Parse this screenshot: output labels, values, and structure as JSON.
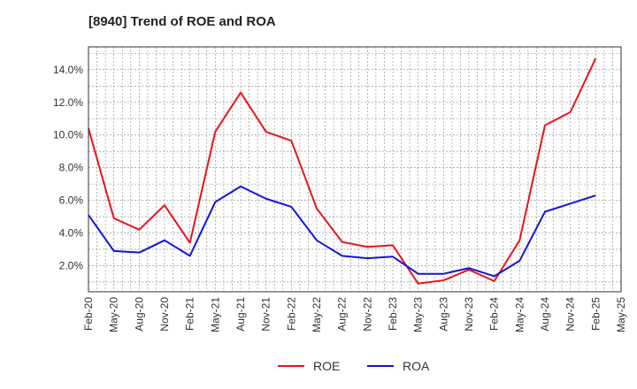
{
  "chart_data": {
    "type": "line",
    "title": "[8940]  Trend of ROE and ROA",
    "xlabel": "",
    "ylabel": "",
    "ylim": [
      0.4,
      15.4
    ],
    "y_ticks": [
      "2.0%",
      "4.0%",
      "6.0%",
      "8.0%",
      "10.0%",
      "12.0%",
      "14.0%"
    ],
    "y_tick_values": [
      2,
      4,
      6,
      8,
      10,
      12,
      14
    ],
    "x_ticks": [
      "Feb-20",
      "May-20",
      "Aug-20",
      "Nov-20",
      "Feb-21",
      "May-21",
      "Aug-21",
      "Nov-21",
      "Feb-22",
      "May-22",
      "Aug-22",
      "Nov-22",
      "Feb-23",
      "May-23",
      "Aug-23",
      "Nov-23",
      "Feb-24",
      "May-24",
      "Aug-24",
      "Nov-24",
      "Feb-25",
      "May-25"
    ],
    "grid": true,
    "legend": "bottom",
    "series": [
      {
        "name": "ROE",
        "color": "#e8141c",
        "values": [
          10.4,
          4.9,
          4.2,
          5.7,
          3.4,
          10.2,
          12.6,
          10.2,
          9.65,
          5.5,
          3.45,
          3.15,
          3.25,
          0.9,
          1.1,
          1.75,
          1.05,
          3.55,
          10.6,
          11.4,
          14.7
        ]
      },
      {
        "name": "ROA",
        "color": "#1414dc",
        "values": [
          5.1,
          2.9,
          2.8,
          3.55,
          2.6,
          5.9,
          6.85,
          6.1,
          5.6,
          3.55,
          2.6,
          2.45,
          2.55,
          1.5,
          1.5,
          1.85,
          1.35,
          2.3,
          5.3,
          5.8,
          6.3
        ]
      }
    ]
  }
}
